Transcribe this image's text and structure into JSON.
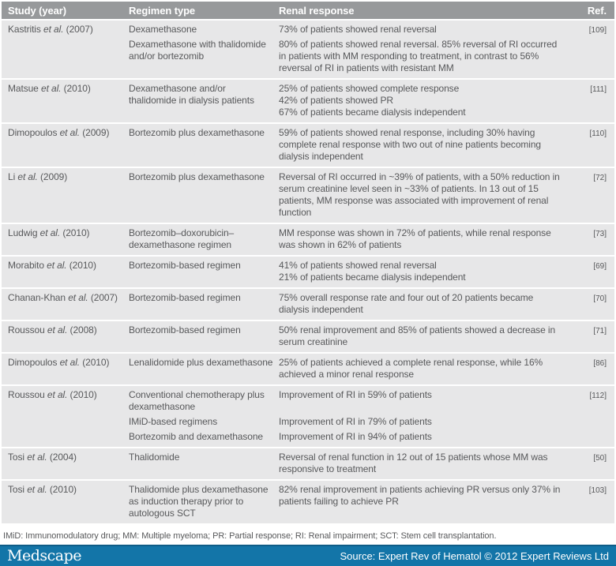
{
  "header": {
    "columns": [
      "Study (year)",
      "Regimen type",
      "Renal response",
      "Ref."
    ]
  },
  "groups": [
    {
      "study": {
        "pre": "Kastritis",
        "etal": "et al.",
        "year": "(2007)"
      },
      "ref": "[109]",
      "entries": [
        {
          "regimen": "Dexamethasone",
          "response": [
            "73% of patients showed renal reversal"
          ]
        },
        {
          "regimen": "Dexamethasone with thalidomide and/or bortezomib",
          "response": [
            "80% of patients showed renal reversal. 85% reversal of RI occurred in patients with MM responding to treatment, in contrast to 56% reversal of RI in patients with resistant MM"
          ]
        }
      ]
    },
    {
      "study": {
        "pre": "Matsue",
        "etal": "et al.",
        "year": "(2010)"
      },
      "ref": "[111]",
      "entries": [
        {
          "regimen": "Dexamethasone and/or thalidomide in dialysis patients",
          "response": [
            "25% of patients showed complete response",
            "42% of patients showed PR",
            "67% of patients became dialysis independent"
          ]
        }
      ]
    },
    {
      "study": {
        "pre": "Dimopoulos",
        "etal": "et al.",
        "year": "(2009)"
      },
      "ref": "[110]",
      "entries": [
        {
          "regimen": "Bortezomib plus dexamethasone",
          "response": [
            "59% of patients showed renal response, including 30% having complete renal response with two out of nine patients becoming dialysis independent"
          ]
        }
      ]
    },
    {
      "study": {
        "pre": "Li",
        "etal": "et al.",
        "year": "(2009)"
      },
      "ref": "[72]",
      "entries": [
        {
          "regimen": "Bortezomib plus dexamethasone",
          "response": [
            "Reversal of RI occurred in ~39% of patients, with a 50% reduction in serum creatinine level seen in ~33% of patients. In 13 out of 15 patients, MM response was associated with improvement of renal function"
          ]
        }
      ]
    },
    {
      "study": {
        "pre": "Ludwig",
        "etal": "et al.",
        "year": "(2010)"
      },
      "ref": "[73]",
      "entries": [
        {
          "regimen": "Bortezomib–doxorubicin–dexamethasone regimen",
          "response": [
            "MM response was shown in 72% of patients, while renal response was shown in 62% of patients"
          ]
        }
      ]
    },
    {
      "study": {
        "pre": "Morabito",
        "etal": "et al.",
        "year": "(2010)"
      },
      "ref": "[69]",
      "entries": [
        {
          "regimen": "Bortezomib-based regimen",
          "response": [
            "41% of patients showed renal reversal",
            "21% of patients became dialysis independent"
          ]
        }
      ]
    },
    {
      "study": {
        "pre": "Chanan-Khan",
        "etal": "et al.",
        "year": "(2007)"
      },
      "ref": "[70]",
      "entries": [
        {
          "regimen": "Bortezomib-based regimen",
          "response": [
            "75% overall response rate and four out of 20 patients became dialysis independent"
          ]
        }
      ]
    },
    {
      "study": {
        "pre": "Roussou",
        "etal": "et al.",
        "year": "(2008)"
      },
      "ref": "[71]",
      "entries": [
        {
          "regimen": "Bortezomib-based regimen",
          "response": [
            "50% renal improvement and 85% of patients showed a decrease in serum creatinine"
          ]
        }
      ]
    },
    {
      "study": {
        "pre": "Dimopoulos",
        "etal": "et al.",
        "year": "(2010)"
      },
      "ref": "[86]",
      "entries": [
        {
          "regimen": "Lenalidomide plus dexamethasone",
          "response": [
            "25% of patients achieved a complete renal response, while 16% achieved a minor renal response"
          ]
        }
      ]
    },
    {
      "study": {
        "pre": "Roussou",
        "etal": "et al.",
        "year": "(2010)"
      },
      "ref": "[112]",
      "entries": [
        {
          "regimen": "Conventional chemotherapy plus dexamethasone",
          "response": [
            "Improvement of RI in 59% of patients"
          ]
        },
        {
          "regimen": "IMiD-based regimens",
          "response": [
            "Improvement of RI in 79% of patients"
          ]
        },
        {
          "regimen": "Bortezomib and dexamethasone",
          "response": [
            "Improvement of RI in 94% of patients"
          ]
        }
      ]
    },
    {
      "study": {
        "pre": "Tosi",
        "etal": "et al.",
        "year": "(2004)"
      },
      "ref": "[50]",
      "entries": [
        {
          "regimen": "Thalidomide",
          "response": [
            "Reversal of renal function in 12 out of 15 patients whose MM was responsive to treatment"
          ]
        }
      ]
    },
    {
      "study": {
        "pre": "Tosi",
        "etal": "et al.",
        "year": "(2010)"
      },
      "ref": "[103]",
      "entries": [
        {
          "regimen": "Thalidomide plus dexamethasone as induction therapy prior to autologous SCT",
          "response": [
            "82% renal improvement in patients achieving PR versus only 37% in patients failing to achieve PR"
          ]
        }
      ]
    }
  ],
  "footnote": "IMiD: Immunomodulatory drug; MM: Multiple myeloma; PR: Partial response; RI: Renal impairment; SCT: Stem cell transplantation.",
  "footer": {
    "logo": "Medscape",
    "source": "Source: Expert Rev of Hematol © 2012 Expert Reviews Ltd"
  },
  "colors": {
    "header_bg": "#97999b",
    "row_bg": "#e7e7e8",
    "footer_bg": "#1375a8",
    "text": "#58595b"
  }
}
